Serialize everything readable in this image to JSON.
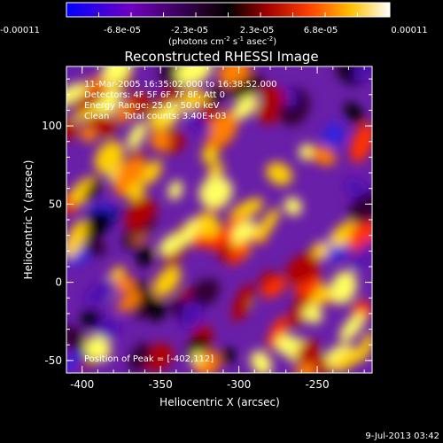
{
  "chart_data": {
    "type": "heatmap",
    "title": "Reconstructed RHESSI Image",
    "xlabel": "Heliocentric X (arcsec)",
    "ylabel": "Heliocentric Y (arcsec)",
    "xlim": [
      -410,
      -215
    ],
    "ylim": [
      -58,
      138
    ],
    "xticks": [
      -400,
      -350,
      -300,
      -250
    ],
    "yticks": [
      -50,
      0,
      50,
      100
    ],
    "colorbar": {
      "ticks": [
        "-0.00011",
        "-6.8e-05",
        "-2.3e-05",
        "2.3e-05",
        "6.8e-05",
        "0.00011"
      ],
      "unit_main": "(photons cm",
      "unit_exp1": "-2",
      "unit_mid": " s",
      "unit_exp2": "-1",
      "unit_after": " asec",
      "unit_exp3": "-2",
      "unit_close": ")",
      "colors": [
        "#0000ff",
        "#8000c0",
        "#200020",
        "#000000",
        "#c00000",
        "#ff8000",
        "#ffff40",
        "#ffffff"
      ]
    },
    "annotations": [
      "11-Mar-2005 16:35:02.000 to 16:38:52.000",
      "Detectors: 4F 5F 6F 7F 8F, Att 0",
      "Energy Range: 25.0 - 50.0 keV",
      "Clean     Total counts: 3.40E+03"
    ],
    "peak_label": "Position of Peak = [-402,112]"
  },
  "footer_date": "9-Jul-2013 03:42"
}
